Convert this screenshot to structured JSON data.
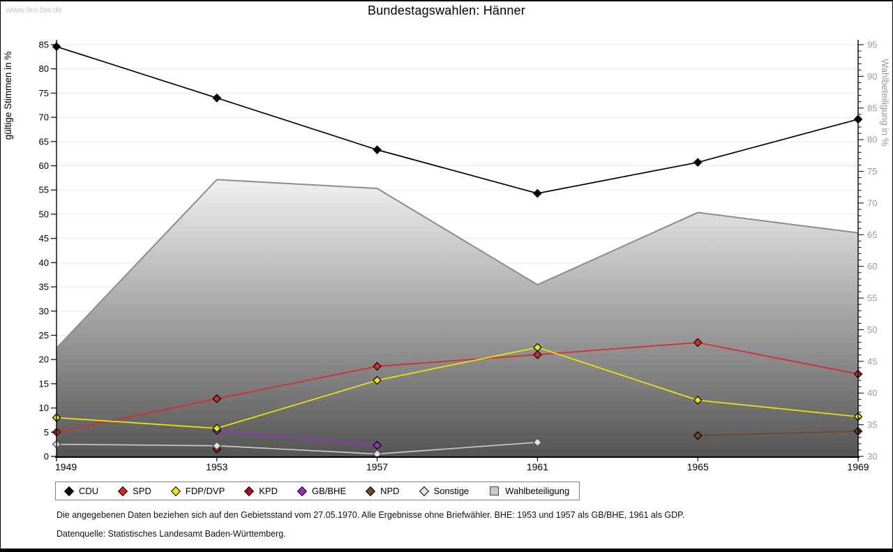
{
  "site": {
    "watermark": "www.leo-bw.de"
  },
  "title": "Bundestagswahlen: Hänner",
  "footnotes": {
    "line1": "Die angegebenen Daten beziehen sich auf den Gebietsstand vom 27.05.1970. Alle Ergebnisse ohne Briefwähler. BHE: 1953 und 1957 als GB/BHE, 1961 als GDP.",
    "line2": "Datenquelle: Statistisches Landesamt Baden-Württemberg."
  },
  "chart_data": {
    "type": "line",
    "x": [
      1949,
      1953,
      1957,
      1961,
      1965,
      1969
    ],
    "left_axis": {
      "label": "gültige Stimmen in %",
      "min": 0,
      "max": 85,
      "tick_step": 5,
      "color": "#000000"
    },
    "right_axis": {
      "label": "Wahlbeteiligung in %",
      "min": 30,
      "max": 95,
      "tick_step": 5,
      "minor_step": 1,
      "color": "#999999"
    },
    "grid": true,
    "series": [
      {
        "name": "CDU",
        "color": "#000000",
        "values": [
          84.6,
          74.0,
          63.3,
          54.3,
          60.7,
          69.6
        ]
      },
      {
        "name": "SPD",
        "color": "#dd2828",
        "values": [
          5.0,
          11.9,
          18.6,
          21.0,
          23.5,
          17.0
        ]
      },
      {
        "name": "FDP/DVP",
        "color": "#efe600",
        "values": [
          8.0,
          5.8,
          15.7,
          22.5,
          11.6,
          8.2
        ]
      },
      {
        "name": "KPD",
        "color": "#a50f1e",
        "values": [
          null,
          1.5,
          null,
          null,
          null,
          null
        ]
      },
      {
        "name": "GB/BHE",
        "color": "#9432c8",
        "values": [
          null,
          5.3,
          2.3,
          null,
          null,
          null
        ]
      },
      {
        "name": "NPD",
        "color": "#6e4628",
        "values": [
          null,
          null,
          null,
          null,
          4.3,
          5.2
        ]
      },
      {
        "name": "Sonstige",
        "color": "#e4e4e4",
        "line_color": "#c8c8c8",
        "values": [
          2.5,
          2.2,
          0.5,
          2.9,
          null,
          null
        ]
      }
    ],
    "area_series": {
      "name": "Wahlbeteiligung",
      "axis": "right",
      "values": [
        47.1,
        73.7,
        72.3,
        57.1,
        68.5,
        65.3
      ],
      "fill_top": "#f2f2f2",
      "fill_bottom": "#545454",
      "edge_color": "#8c8c8c"
    },
    "legend": {
      "position": "bottom",
      "items": [
        {
          "label": "CDU",
          "marker": "diamond",
          "color": "#000000"
        },
        {
          "label": "SPD",
          "marker": "diamond",
          "color": "#dd2828"
        },
        {
          "label": "FDP/DVP",
          "marker": "diamond",
          "color": "#efe600"
        },
        {
          "label": "KPD",
          "marker": "diamond",
          "color": "#a50f1e"
        },
        {
          "label": "GB/BHE",
          "marker": "diamond",
          "color": "#9432c8"
        },
        {
          "label": "NPD",
          "marker": "diamond",
          "color": "#6e4628"
        },
        {
          "label": "Sonstige",
          "marker": "diamond",
          "color": "#e4e4e4"
        },
        {
          "label": "Wahlbeteiligung",
          "marker": "square",
          "color": "#c9c9c9"
        }
      ]
    },
    "grid_color": "#e8e8e8"
  }
}
